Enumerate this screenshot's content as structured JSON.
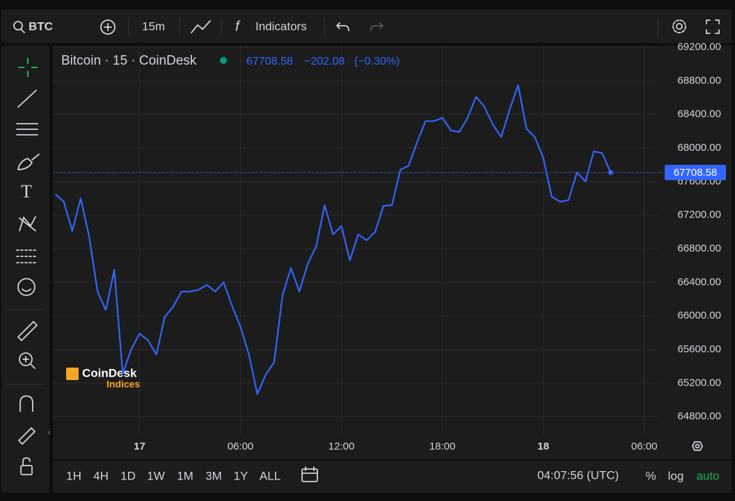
{
  "toolbar": {
    "symbol": "BTC",
    "interval": "15m",
    "indicators": "Indicators"
  },
  "legend": {
    "title": "Bitcoin · 15 · CoinDesk",
    "price": "67708.58",
    "change": "−202.08",
    "change_pct": "(−0.30%)"
  },
  "watermark": {
    "brand": "CoinDesk",
    "sub": "Indices"
  },
  "chart": {
    "type": "line",
    "color": "#3366ff",
    "values": [
      67450,
      67360,
      67010,
      67400,
      66950,
      66290,
      66070,
      66550,
      65310,
      65600,
      65790,
      65710,
      65540,
      65990,
      66110,
      66290,
      66290,
      66310,
      66370,
      66290,
      66400,
      66120,
      65870,
      65540,
      65070,
      65300,
      65450,
      66250,
      66570,
      66290,
      66620,
      66830,
      67320,
      66970,
      67070,
      66660,
      66970,
      66900,
      67000,
      67310,
      67320,
      67740,
      67790,
      68070,
      68320,
      68320,
      68360,
      68210,
      68190,
      68360,
      68610,
      68490,
      68280,
      68130,
      68460,
      68750,
      68230,
      68130,
      67880,
      67420,
      67360,
      67380,
      67710,
      67600,
      67960,
      67940,
      67708.58
    ],
    "xlim": [
      -0.3,
      71.6
    ],
    "xticks": [
      {
        "value": 10,
        "label": "17"
      },
      {
        "value": 22,
        "label": "06:00"
      },
      {
        "value": 34,
        "label": "12:00"
      },
      {
        "value": 46,
        "label": "18:00"
      },
      {
        "value": 58,
        "label": "18"
      },
      {
        "value": 70,
        "label": "06:00"
      }
    ],
    "ylim": [
      64590,
      69225
    ],
    "yticks": [
      {
        "value": 64800,
        "label": "64800.00"
      },
      {
        "value": 65200,
        "label": "65200.00"
      },
      {
        "value": 65600,
        "label": "65600.00"
      },
      {
        "value": 66000,
        "label": "66000.00"
      },
      {
        "value": 66400,
        "label": "66400.00"
      },
      {
        "value": 66800,
        "label": "66800.00"
      },
      {
        "value": 67200,
        "label": "67200.00"
      },
      {
        "value": 67600,
        "label": "67600.00"
      },
      {
        "value": 68000,
        "label": "68000.00"
      },
      {
        "value": 68400,
        "label": "68400.00"
      },
      {
        "value": 68800,
        "label": "68800.00"
      },
      {
        "value": 69200,
        "label": "69200.00"
      }
    ],
    "grid": true
  },
  "ranges": [
    "1H",
    "4H",
    "1D",
    "1W",
    "1M",
    "3M",
    "1Y",
    "ALL"
  ],
  "clock": "04:07:56 (UTC)",
  "scale_modes": [
    "%",
    "log",
    "auto"
  ]
}
